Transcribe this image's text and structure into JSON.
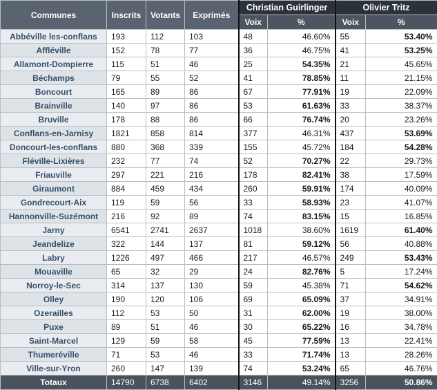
{
  "headers": {
    "communes": "Communes",
    "inscrits": "Inscrits",
    "votants": "Votants",
    "exprimes": "Exprimés",
    "candidate1": "Christian Guirlinger",
    "candidate2": "Olivier Tritz",
    "voix": "Voix",
    "pct": "%"
  },
  "rows": [
    {
      "commune": "Abbéville les-conflans",
      "inscrits": "193",
      "votants": "112",
      "exprimes": "103",
      "v1": "48",
      "p1": "46.60%",
      "v2": "55",
      "p2": "53.40%"
    },
    {
      "commune": "Affléville",
      "inscrits": "152",
      "votants": "78",
      "exprimes": "77",
      "v1": "36",
      "p1": "46.75%",
      "v2": "41",
      "p2": "53.25%"
    },
    {
      "commune": "Allamont-Dompierre",
      "inscrits": "115",
      "votants": "51",
      "exprimes": "46",
      "v1": "25",
      "p1": "54.35%",
      "v2": "21",
      "p2": "45.65%"
    },
    {
      "commune": "Béchamps",
      "inscrits": "79",
      "votants": "55",
      "exprimes": "52",
      "v1": "41",
      "p1": "78.85%",
      "v2": "11",
      "p2": "21.15%"
    },
    {
      "commune": "Boncourt",
      "inscrits": "165",
      "votants": "89",
      "exprimes": "86",
      "v1": "67",
      "p1": "77.91%",
      "v2": "19",
      "p2": "22.09%"
    },
    {
      "commune": "Brainville",
      "inscrits": "140",
      "votants": "97",
      "exprimes": "86",
      "v1": "53",
      "p1": "61.63%",
      "v2": "33",
      "p2": "38.37%"
    },
    {
      "commune": "Bruville",
      "inscrits": "178",
      "votants": "88",
      "exprimes": "86",
      "v1": "66",
      "p1": "76.74%",
      "v2": "20",
      "p2": "23.26%"
    },
    {
      "commune": "Conflans-en-Jarnisy",
      "inscrits": "1821",
      "votants": "858",
      "exprimes": "814",
      "v1": "377",
      "p1": "46.31%",
      "v2": "437",
      "p2": "53.69%"
    },
    {
      "commune": "Doncourt-les-conflans",
      "inscrits": "880",
      "votants": "368",
      "exprimes": "339",
      "v1": "155",
      "p1": "45.72%",
      "v2": "184",
      "p2": "54.28%"
    },
    {
      "commune": "Fléville-Lixières",
      "inscrits": "232",
      "votants": "77",
      "exprimes": "74",
      "v1": "52",
      "p1": "70.27%",
      "v2": "22",
      "p2": "29.73%"
    },
    {
      "commune": "Friauville",
      "inscrits": "297",
      "votants": "221",
      "exprimes": "216",
      "v1": "178",
      "p1": "82.41%",
      "v2": "38",
      "p2": "17.59%"
    },
    {
      "commune": "Giraumont",
      "inscrits": "884",
      "votants": "459",
      "exprimes": "434",
      "v1": "260",
      "p1": "59.91%",
      "v2": "174",
      "p2": "40.09%"
    },
    {
      "commune": "Gondrecourt-Aix",
      "inscrits": "119",
      "votants": "59",
      "exprimes": "56",
      "v1": "33",
      "p1": "58.93%",
      "v2": "23",
      "p2": "41.07%"
    },
    {
      "commune": "Hannonville-Suzémont",
      "inscrits": "216",
      "votants": "92",
      "exprimes": "89",
      "v1": "74",
      "p1": "83.15%",
      "v2": "15",
      "p2": "16.85%"
    },
    {
      "commune": "Jarny",
      "inscrits": "6541",
      "votants": "2741",
      "exprimes": "2637",
      "v1": "1018",
      "p1": "38.60%",
      "v2": "1619",
      "p2": "61.40%"
    },
    {
      "commune": "Jeandelize",
      "inscrits": "322",
      "votants": "144",
      "exprimes": "137",
      "v1": "81",
      "p1": "59.12%",
      "v2": "56",
      "p2": "40.88%"
    },
    {
      "commune": "Labry",
      "inscrits": "1226",
      "votants": "497",
      "exprimes": "466",
      "v1": "217",
      "p1": "46.57%",
      "v2": "249",
      "p2": "53.43%"
    },
    {
      "commune": "Mouaville",
      "inscrits": "65",
      "votants": "32",
      "exprimes": "29",
      "v1": "24",
      "p1": "82.76%",
      "v2": "5",
      "p2": "17.24%"
    },
    {
      "commune": "Norroy-le-Sec",
      "inscrits": "314",
      "votants": "137",
      "exprimes": "130",
      "v1": "59",
      "p1": "45.38%",
      "v2": "71",
      "p2": "54.62%"
    },
    {
      "commune": "Olley",
      "inscrits": "190",
      "votants": "120",
      "exprimes": "106",
      "v1": "69",
      "p1": "65.09%",
      "v2": "37",
      "p2": "34.91%"
    },
    {
      "commune": "Ozerailles",
      "inscrits": "112",
      "votants": "53",
      "exprimes": "50",
      "v1": "31",
      "p1": "62.00%",
      "v2": "19",
      "p2": "38.00%"
    },
    {
      "commune": "Puxe",
      "inscrits": "89",
      "votants": "51",
      "exprimes": "46",
      "v1": "30",
      "p1": "65.22%",
      "v2": "16",
      "p2": "34.78%"
    },
    {
      "commune": "Saint-Marcel",
      "inscrits": "129",
      "votants": "59",
      "exprimes": "58",
      "v1": "45",
      "p1": "77.59%",
      "v2": "13",
      "p2": "22.41%"
    },
    {
      "commune": "Thumeréville",
      "inscrits": "71",
      "votants": "53",
      "exprimes": "46",
      "v1": "33",
      "p1": "71.74%",
      "v2": "13",
      "p2": "28.26%"
    },
    {
      "commune": "Ville-sur-Yron",
      "inscrits": "260",
      "votants": "147",
      "exprimes": "139",
      "v1": "74",
      "p1": "53.24%",
      "v2": "65",
      "p2": "46.76%"
    }
  ],
  "total": {
    "commune": "Totaux",
    "inscrits": "14790",
    "votants": "6738",
    "exprimes": "6402",
    "v1": "3146",
    "p1": "49.14%",
    "v2": "3256",
    "p2": "50.86%"
  }
}
